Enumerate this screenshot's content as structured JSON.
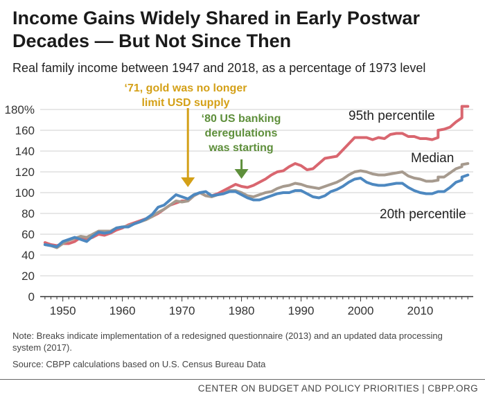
{
  "title": "Income Gains Widely Shared in Early Postwar Decades — But Not Since Then",
  "subtitle": "Real family income between 1947 and 2018, as a percentage of 1973 level",
  "note": "Note: Breaks indicate implementation of a redesigned questionnaire (2013) and an updated data processing system (2017).",
  "source": "Source: CBPP calculations based on U.S. Census Bureau Data",
  "footer": "CENTER ON BUDGET AND POLICY PRIORITIES | CBPP.ORG",
  "chart_data": {
    "type": "line",
    "title": "Income Gains Widely Shared in Early Postwar Decades — But Not Since Then",
    "xlabel": "",
    "ylabel": "",
    "xlim": [
      1947,
      2018
    ],
    "ylim": [
      0,
      180
    ],
    "y_ticks": [
      0,
      20,
      40,
      60,
      80,
      100,
      120,
      140,
      160,
      180
    ],
    "y_tick_labels": [
      "0",
      "20",
      "40",
      "60",
      "80",
      "100",
      "120",
      "140",
      "160",
      "180%"
    ],
    "x_ticks": [
      1950,
      1960,
      1970,
      1980,
      1990,
      2000,
      2010
    ],
    "x_tick_labels": [
      "1950",
      "1960",
      "1970",
      "1980",
      "1990",
      "2000",
      "2010"
    ],
    "grid": true,
    "breaks_after": [
      2013,
      2017
    ],
    "series": [
      {
        "name": "95th percentile",
        "color": "#d9666f",
        "x": [
          1947,
          1948,
          1949,
          1950,
          1951,
          1952,
          1953,
          1954,
          1955,
          1956,
          1957,
          1958,
          1959,
          1960,
          1961,
          1962,
          1963,
          1964,
          1965,
          1966,
          1967,
          1968,
          1969,
          1970,
          1971,
          1972,
          1973,
          1974,
          1975,
          1976,
          1977,
          1978,
          1979,
          1980,
          1981,
          1982,
          1983,
          1984,
          1985,
          1986,
          1987,
          1988,
          1989,
          1990,
          1991,
          1992,
          1993,
          1994,
          1995,
          1996,
          1997,
          1998,
          1999,
          2000,
          2001,
          2002,
          2003,
          2004,
          2005,
          2006,
          2007,
          2008,
          2009,
          2010,
          2011,
          2012,
          2013,
          2013,
          2014,
          2015,
          2016,
          2017,
          2017,
          2018
        ],
        "values": [
          52,
          50,
          49,
          51,
          51,
          53,
          57,
          55,
          57,
          60,
          59,
          61,
          64,
          66,
          69,
          71,
          73,
          75,
          77,
          80,
          84,
          88,
          90,
          92,
          92,
          97,
          100,
          97,
          97,
          99,
          102,
          105,
          108,
          106,
          105,
          107,
          110,
          113,
          117,
          120,
          121,
          125,
          128,
          126,
          122,
          123,
          128,
          133,
          134,
          135,
          141,
          147,
          153,
          153,
          153,
          151,
          153,
          152,
          156,
          157,
          157,
          154,
          154,
          152,
          152,
          151,
          153,
          160,
          161,
          163,
          168,
          172,
          183,
          183
        ]
      },
      {
        "name": "Median",
        "color": "#a69a8e",
        "x": [
          1947,
          1948,
          1949,
          1950,
          1951,
          1952,
          1953,
          1954,
          1955,
          1956,
          1957,
          1958,
          1959,
          1960,
          1961,
          1962,
          1963,
          1964,
          1965,
          1966,
          1967,
          1968,
          1969,
          1970,
          1971,
          1972,
          1973,
          1974,
          1975,
          1976,
          1977,
          1978,
          1979,
          1980,
          1981,
          1982,
          1983,
          1984,
          1985,
          1986,
          1987,
          1988,
          1989,
          1990,
          1991,
          1992,
          1993,
          1994,
          1995,
          1996,
          1997,
          1998,
          1999,
          2000,
          2001,
          2002,
          2003,
          2004,
          2005,
          2006,
          2007,
          2008,
          2009,
          2010,
          2011,
          2012,
          2013,
          2013,
          2014,
          2015,
          2016,
          2017,
          2017,
          2018
        ],
        "values": [
          50,
          49,
          47,
          51,
          54,
          56,
          58,
          57,
          60,
          63,
          63,
          63,
          66,
          67,
          68,
          70,
          72,
          74,
          77,
          81,
          84,
          88,
          92,
          91,
          92,
          97,
          100,
          97,
          96,
          98,
          99,
          102,
          102,
          100,
          97,
          96,
          98,
          100,
          101,
          104,
          106,
          107,
          109,
          108,
          106,
          105,
          104,
          106,
          108,
          110,
          113,
          117,
          120,
          121,
          120,
          118,
          117,
          117,
          118,
          119,
          120,
          116,
          114,
          113,
          111,
          111,
          112,
          115,
          115,
          119,
          123,
          125,
          127,
          128
        ]
      },
      {
        "name": "20th percentile",
        "color": "#4d88c0",
        "x": [
          1947,
          1948,
          1949,
          1950,
          1951,
          1952,
          1953,
          1954,
          1955,
          1956,
          1957,
          1958,
          1959,
          1960,
          1961,
          1962,
          1963,
          1964,
          1965,
          1966,
          1967,
          1968,
          1969,
          1970,
          1971,
          1972,
          1973,
          1974,
          1975,
          1976,
          1977,
          1978,
          1979,
          1980,
          1981,
          1982,
          1983,
          1984,
          1985,
          1986,
          1987,
          1988,
          1989,
          1990,
          1991,
          1992,
          1993,
          1994,
          1995,
          1996,
          1997,
          1998,
          1999,
          2000,
          2001,
          2002,
          2003,
          2004,
          2005,
          2006,
          2007,
          2008,
          2009,
          2010,
          2011,
          2012,
          2013,
          2013,
          2014,
          2015,
          2016,
          2017,
          2017,
          2018
        ],
        "values": [
          50,
          49,
          48,
          53,
          55,
          57,
          55,
          53,
          58,
          62,
          61,
          62,
          66,
          67,
          67,
          70,
          72,
          75,
          79,
          86,
          88,
          93,
          98,
          96,
          94,
          98,
          100,
          101,
          97,
          98,
          99,
          101,
          101,
          98,
          95,
          93,
          93,
          95,
          97,
          99,
          100,
          100,
          102,
          102,
          99,
          96,
          95,
          97,
          101,
          103,
          106,
          110,
          113,
          114,
          110,
          108,
          107,
          107,
          108,
          109,
          109,
          105,
          102,
          100,
          99,
          99,
          101,
          101,
          101,
          105,
          110,
          112,
          115,
          117
        ]
      }
    ],
    "series_labels": [
      "95th percentile",
      "Median",
      "20th percentile"
    ],
    "annotations": [
      {
        "lines": [
          "‘71, gold was no longer",
          "limit USD supply"
        ],
        "x": 1971,
        "color": "#d4a017"
      },
      {
        "lines": [
          "‘80 US banking",
          "deregulations",
          "was starting"
        ],
        "x": 1980,
        "color": "#5e8f3b"
      }
    ]
  }
}
